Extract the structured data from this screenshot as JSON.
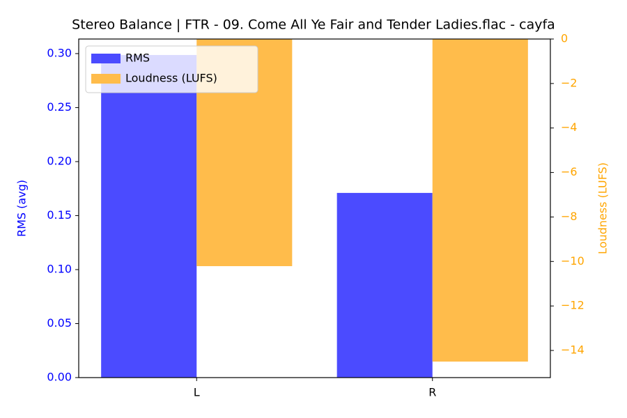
{
  "chart_data": {
    "type": "bar",
    "title": "Stereo Balance | FTR - 09. Come All Ye Fair and Tender Ladies.flac - cayfa",
    "categories": [
      "L",
      "R"
    ],
    "series": [
      {
        "name": "RMS",
        "color": "#4b4bff",
        "values": [
          0.2987,
          0.171
        ]
      },
      {
        "name": "Loudness (LUFS)",
        "color": "#ffbc4b",
        "values": [
          -10.21,
          -14.5
        ],
        "axis": "y2"
      }
    ],
    "ylabel": "RMS (avg)",
    "ylabel_color": "blue",
    "y2label": "Loudness (LUFS)",
    "y2label_color": "orange",
    "ylim": [
      0,
      0.3135
    ],
    "yticks": [
      {
        "value": 0,
        "label": "0.00"
      },
      {
        "value": 0.05,
        "label": "0.05"
      },
      {
        "value": 0.1,
        "label": "0.10"
      },
      {
        "value": 0.15,
        "label": "0.15"
      },
      {
        "value": 0.2,
        "label": "0.20"
      },
      {
        "value": 0.25,
        "label": "0.25"
      },
      {
        "value": 0.3,
        "label": "0.30"
      }
    ],
    "y2lim": [
      -15.22,
      0
    ],
    "y2ticks": [
      {
        "value": -14,
        "label": "−14"
      },
      {
        "value": -12,
        "label": "−12"
      },
      {
        "value": -10,
        "label": "−10"
      },
      {
        "value": -8,
        "label": "−8"
      },
      {
        "value": -6,
        "label": "−6"
      },
      {
        "value": -4,
        "label": "−4"
      },
      {
        "value": -2,
        "label": "−2"
      },
      0
    ],
    "legend": "upper left"
  }
}
